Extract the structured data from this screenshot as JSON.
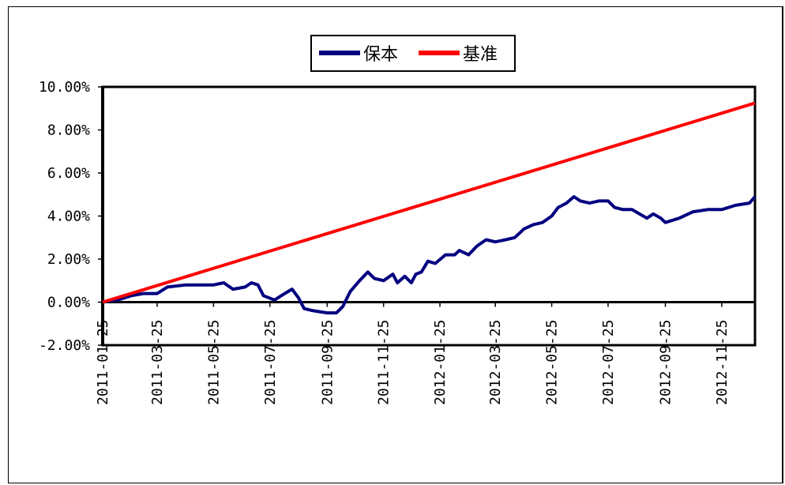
{
  "chart_data": {
    "type": "line",
    "title": "",
    "xlabel": "",
    "ylabel": "",
    "ylim": [
      -0.02,
      0.1
    ],
    "yticks": [
      "10.00%",
      "8.00%",
      "6.00%",
      "4.00%",
      "2.00%",
      "0.00%",
      "-2.00%"
    ],
    "ytick_values": [
      0.1,
      0.08,
      0.06,
      0.04,
      0.02,
      0.0,
      -0.02
    ],
    "x_start": "2011-01-25",
    "x_end": "2012-12-31",
    "xticks": [
      "2011-01-25",
      "2011-03-25",
      "2011-05-25",
      "2011-07-25",
      "2011-09-25",
      "2011-11-25",
      "2012-01-25",
      "2012-03-25",
      "2012-05-25",
      "2012-07-25",
      "2012-09-25",
      "2012-11-25"
    ],
    "legend_position": "top-center",
    "grid": false,
    "series": [
      {
        "name": "保本",
        "color": "#000080",
        "points": [
          [
            "2011-01-25",
            0.0
          ],
          [
            "2011-02-10",
            0.001
          ],
          [
            "2011-02-25",
            0.003
          ],
          [
            "2011-03-10",
            0.004
          ],
          [
            "2011-03-25",
            0.004
          ],
          [
            "2011-04-05",
            0.007
          ],
          [
            "2011-04-25",
            0.008
          ],
          [
            "2011-05-25",
            0.008
          ],
          [
            "2011-06-05",
            0.009
          ],
          [
            "2011-06-15",
            0.006
          ],
          [
            "2011-06-28",
            0.007
          ],
          [
            "2011-07-05",
            0.009
          ],
          [
            "2011-07-12",
            0.008
          ],
          [
            "2011-07-18",
            0.003
          ],
          [
            "2011-07-30",
            0.001
          ],
          [
            "2011-08-10",
            0.004
          ],
          [
            "2011-08-18",
            0.006
          ],
          [
            "2011-08-25",
            0.002
          ],
          [
            "2011-08-31",
            -0.003
          ],
          [
            "2011-09-10",
            -0.004
          ],
          [
            "2011-09-25",
            -0.005
          ],
          [
            "2011-10-05",
            -0.005
          ],
          [
            "2011-10-12",
            -0.002
          ],
          [
            "2011-10-20",
            0.005
          ],
          [
            "2011-10-30",
            0.01
          ],
          [
            "2011-11-08",
            0.014
          ],
          [
            "2011-11-15",
            0.011
          ],
          [
            "2011-11-25",
            0.01
          ],
          [
            "2011-12-05",
            0.013
          ],
          [
            "2011-12-10",
            0.009
          ],
          [
            "2011-12-18",
            0.012
          ],
          [
            "2011-12-25",
            0.009
          ],
          [
            "2011-12-30",
            0.013
          ],
          [
            "2012-01-05",
            0.014
          ],
          [
            "2012-01-12",
            0.019
          ],
          [
            "2012-01-20",
            0.018
          ],
          [
            "2012-01-31",
            0.022
          ],
          [
            "2012-02-10",
            0.022
          ],
          [
            "2012-02-15",
            0.024
          ],
          [
            "2012-02-25",
            0.022
          ],
          [
            "2012-03-05",
            0.026
          ],
          [
            "2012-03-15",
            0.029
          ],
          [
            "2012-03-25",
            0.028
          ],
          [
            "2012-04-05",
            0.029
          ],
          [
            "2012-04-15",
            0.03
          ],
          [
            "2012-04-25",
            0.034
          ],
          [
            "2012-05-05",
            0.036
          ],
          [
            "2012-05-15",
            0.037
          ],
          [
            "2012-05-25",
            0.04
          ],
          [
            "2012-06-01",
            0.044
          ],
          [
            "2012-06-10",
            0.046
          ],
          [
            "2012-06-18",
            0.049
          ],
          [
            "2012-06-25",
            0.047
          ],
          [
            "2012-07-05",
            0.046
          ],
          [
            "2012-07-15",
            0.047
          ],
          [
            "2012-07-25",
            0.047
          ],
          [
            "2012-08-01",
            0.044
          ],
          [
            "2012-08-10",
            0.043
          ],
          [
            "2012-08-20",
            0.043
          ],
          [
            "2012-08-28",
            0.041
          ],
          [
            "2012-09-05",
            0.039
          ],
          [
            "2012-09-12",
            0.041
          ],
          [
            "2012-09-20",
            0.039
          ],
          [
            "2012-09-25",
            0.037
          ],
          [
            "2012-10-10",
            0.039
          ],
          [
            "2012-10-25",
            0.042
          ],
          [
            "2012-11-10",
            0.043
          ],
          [
            "2012-11-25",
            0.043
          ],
          [
            "2012-12-10",
            0.045
          ],
          [
            "2012-12-25",
            0.046
          ],
          [
            "2012-12-31",
            0.049
          ]
        ]
      },
      {
        "name": "基准",
        "color": "#ff0000",
        "points": [
          [
            "2011-01-25",
            0.0
          ],
          [
            "2012-12-31",
            0.0925
          ]
        ]
      }
    ]
  }
}
